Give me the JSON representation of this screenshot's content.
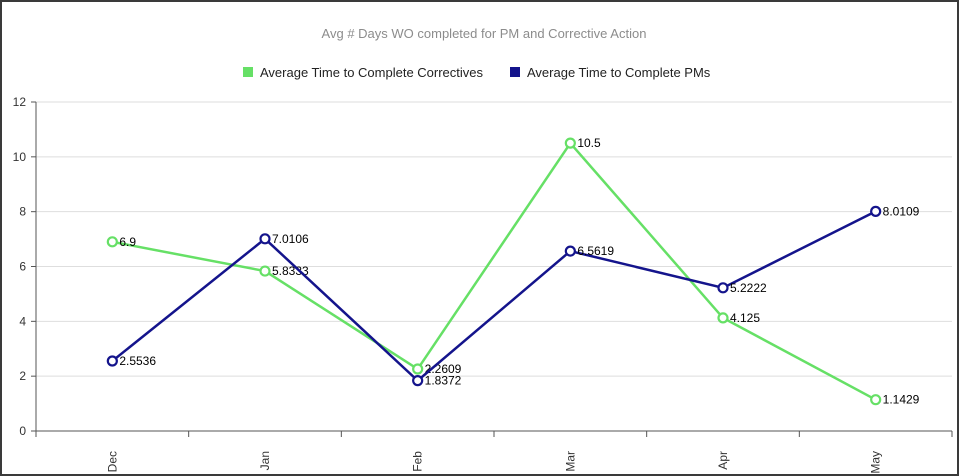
{
  "chart_data": {
    "type": "line",
    "title": "Avg # Days WO completed for PM and Corrective Action",
    "categories": [
      "Dec",
      "Jan",
      "Feb",
      "Mar",
      "Apr",
      "May"
    ],
    "series": [
      {
        "name": "Average Time to Complete Correctives",
        "color": "#66e066",
        "values": [
          6.9,
          5.8333,
          2.2609,
          10.5,
          4.125,
          1.1429
        ],
        "labels": [
          "6.9",
          "5.8333",
          "2.2609",
          "10.5",
          "4.125",
          "1.1429"
        ]
      },
      {
        "name": "Average Time to Complete PMs",
        "color": "#14148c",
        "values": [
          2.5536,
          7.0106,
          1.8372,
          6.5619,
          5.2222,
          8.0109
        ],
        "labels": [
          "2.5536",
          "7.0106",
          "1.8372",
          "6.5619",
          "5.2222",
          "8.0109"
        ]
      }
    ],
    "ylim": [
      0,
      12
    ],
    "yticks": [
      "0",
      "2",
      "4",
      "6",
      "8",
      "10",
      "12"
    ],
    "grid": true,
    "legend_position": "top-center",
    "x_tick_rotation": "vertical"
  }
}
